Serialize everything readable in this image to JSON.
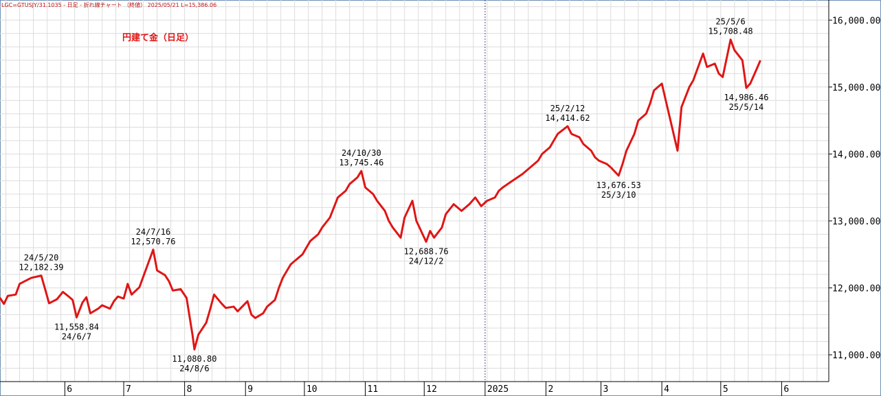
{
  "header": {
    "text": "LGC=GTUSJY/31.1035 - 日足 - 折れ線チャート （終値） 2025/05/21 L=15,386.06"
  },
  "colors": {
    "line": "#e01515",
    "title": "#e01515",
    "grid": "#dcdcdc",
    "axis": "#000000",
    "text": "#000000",
    "border": "#6b8fb3"
  },
  "chart_data": {
    "type": "line",
    "title": "円建て金（日足）",
    "xlabel": "",
    "ylabel": "",
    "ylim": [
      10600,
      16300
    ],
    "x_range": [
      "2024-04-29",
      "2025-06-25"
    ],
    "grid": true,
    "y_ticks": [
      {
        "value": 11000,
        "label": "11,000.00"
      },
      {
        "value": 12000,
        "label": "12,000.00"
      },
      {
        "value": 13000,
        "label": "13,000.00"
      },
      {
        "value": 14000,
        "label": "14,000.00"
      },
      {
        "value": 15000,
        "label": "15,000.00"
      },
      {
        "value": 16000,
        "label": "16,000.00"
      }
    ],
    "x_ticks": [
      {
        "date": "2024-06-01",
        "label": "6"
      },
      {
        "date": "2024-07-01",
        "label": "7"
      },
      {
        "date": "2024-08-01",
        "label": "8"
      },
      {
        "date": "2024-09-01",
        "label": "9"
      },
      {
        "date": "2024-10-01",
        "label": "10"
      },
      {
        "date": "2024-11-01",
        "label": "11"
      },
      {
        "date": "2024-12-01",
        "label": "12"
      },
      {
        "date": "2025-01-01",
        "label": "2025"
      },
      {
        "date": "2025-02-01",
        "label": "2"
      },
      {
        "date": "2025-03-01",
        "label": "3"
      },
      {
        "date": "2025-04-01",
        "label": "4"
      },
      {
        "date": "2025-05-01",
        "label": "5"
      },
      {
        "date": "2025-06-01",
        "label": "6"
      }
    ],
    "year_divider": "2025-01-01",
    "series": [
      {
        "points": [
          [
            "2024-04-29",
            11850
          ],
          [
            "2024-05-01",
            11760
          ],
          [
            "2024-05-03",
            11880
          ],
          [
            "2024-05-07",
            11900
          ],
          [
            "2024-05-09",
            12060
          ],
          [
            "2024-05-13",
            12120
          ],
          [
            "2024-05-15",
            12150
          ],
          [
            "2024-05-20",
            12182.39
          ],
          [
            "2024-05-22",
            11980
          ],
          [
            "2024-05-24",
            11770
          ],
          [
            "2024-05-28",
            11830
          ],
          [
            "2024-05-31",
            11940
          ],
          [
            "2024-06-03",
            11870
          ],
          [
            "2024-06-05",
            11820
          ],
          [
            "2024-06-07",
            11558.84
          ],
          [
            "2024-06-10",
            11780
          ],
          [
            "2024-06-12",
            11860
          ],
          [
            "2024-06-14",
            11620
          ],
          [
            "2024-06-18",
            11690
          ],
          [
            "2024-06-20",
            11740
          ],
          [
            "2024-06-24",
            11690
          ],
          [
            "2024-06-26",
            11800
          ],
          [
            "2024-06-28",
            11870
          ],
          [
            "2024-07-01",
            11840
          ],
          [
            "2024-07-03",
            12060
          ],
          [
            "2024-07-05",
            11900
          ],
          [
            "2024-07-09",
            12010
          ],
          [
            "2024-07-11",
            12170
          ],
          [
            "2024-07-16",
            12570.76
          ],
          [
            "2024-07-18",
            12260
          ],
          [
            "2024-07-22",
            12190
          ],
          [
            "2024-07-24",
            12100
          ],
          [
            "2024-07-26",
            11960
          ],
          [
            "2024-07-30",
            11980
          ],
          [
            "2024-08-02",
            11850
          ],
          [
            "2024-08-05",
            11300
          ],
          [
            "2024-08-06",
            11080.8
          ],
          [
            "2024-08-08",
            11300
          ],
          [
            "2024-08-12",
            11480
          ],
          [
            "2024-08-14",
            11680
          ],
          [
            "2024-08-16",
            11900
          ],
          [
            "2024-08-20",
            11760
          ],
          [
            "2024-08-22",
            11700
          ],
          [
            "2024-08-26",
            11720
          ],
          [
            "2024-08-28",
            11650
          ],
          [
            "2024-09-02",
            11800
          ],
          [
            "2024-09-04",
            11600
          ],
          [
            "2024-09-06",
            11550
          ],
          [
            "2024-09-10",
            11620
          ],
          [
            "2024-09-12",
            11720
          ],
          [
            "2024-09-16",
            11820
          ],
          [
            "2024-09-18",
            12000
          ],
          [
            "2024-09-20",
            12150
          ],
          [
            "2024-09-24",
            12350
          ],
          [
            "2024-09-26",
            12400
          ],
          [
            "2024-09-30",
            12500
          ],
          [
            "2024-10-02",
            12600
          ],
          [
            "2024-10-04",
            12700
          ],
          [
            "2024-10-08",
            12800
          ],
          [
            "2024-10-10",
            12900
          ],
          [
            "2024-10-14",
            13050
          ],
          [
            "2024-10-16",
            13200
          ],
          [
            "2024-10-18",
            13350
          ],
          [
            "2024-10-22",
            13450
          ],
          [
            "2024-10-24",
            13550
          ],
          [
            "2024-10-28",
            13650
          ],
          [
            "2024-10-30",
            13745.46
          ],
          [
            "2024-11-01",
            13500
          ],
          [
            "2024-11-05",
            13400
          ],
          [
            "2024-11-07",
            13300
          ],
          [
            "2024-11-11",
            13150
          ],
          [
            "2024-11-13",
            13000
          ],
          [
            "2024-11-15",
            12900
          ],
          [
            "2024-11-19",
            12750
          ],
          [
            "2024-11-21",
            13050
          ],
          [
            "2024-11-25",
            13300
          ],
          [
            "2024-11-27",
            13000
          ],
          [
            "2024-12-02",
            12688.76
          ],
          [
            "2024-12-04",
            12850
          ],
          [
            "2024-12-06",
            12750
          ],
          [
            "2024-12-10",
            12900
          ],
          [
            "2024-12-12",
            13100
          ],
          [
            "2024-12-16",
            13250
          ],
          [
            "2024-12-18",
            13200
          ],
          [
            "2024-12-20",
            13150
          ],
          [
            "2024-12-24",
            13250
          ],
          [
            "2024-12-27",
            13350
          ],
          [
            "2024-12-30",
            13220
          ],
          [
            "2025-01-02",
            13300
          ],
          [
            "2025-01-06",
            13350
          ],
          [
            "2025-01-08",
            13450
          ],
          [
            "2025-01-10",
            13500
          ],
          [
            "2025-01-14",
            13580
          ],
          [
            "2025-01-16",
            13620
          ],
          [
            "2025-01-20",
            13700
          ],
          [
            "2025-01-22",
            13750
          ],
          [
            "2025-01-24",
            13800
          ],
          [
            "2025-01-28",
            13900
          ],
          [
            "2025-01-30",
            14000
          ],
          [
            "2025-02-03",
            14100
          ],
          [
            "2025-02-05",
            14200
          ],
          [
            "2025-02-07",
            14300
          ],
          [
            "2025-02-12",
            14414.62
          ],
          [
            "2025-02-14",
            14300
          ],
          [
            "2025-02-18",
            14250
          ],
          [
            "2025-02-20",
            14150
          ],
          [
            "2025-02-24",
            14050
          ],
          [
            "2025-02-26",
            13950
          ],
          [
            "2025-02-28",
            13900
          ],
          [
            "2025-03-04",
            13850
          ],
          [
            "2025-03-06",
            13800
          ],
          [
            "2025-03-10",
            13676.53
          ],
          [
            "2025-03-12",
            13850
          ],
          [
            "2025-03-14",
            14050
          ],
          [
            "2025-03-18",
            14300
          ],
          [
            "2025-03-20",
            14500
          ],
          [
            "2025-03-24",
            14600
          ],
          [
            "2025-03-26",
            14750
          ],
          [
            "2025-03-28",
            14950
          ],
          [
            "2025-04-01",
            15050
          ],
          [
            "2025-04-03",
            14800
          ],
          [
            "2025-04-07",
            14300
          ],
          [
            "2025-04-09",
            14050
          ],
          [
            "2025-04-11",
            14700
          ],
          [
            "2025-04-15",
            15000
          ],
          [
            "2025-04-17",
            15100
          ],
          [
            "2025-04-22",
            15500
          ],
          [
            "2025-04-24",
            15300
          ],
          [
            "2025-04-28",
            15350
          ],
          [
            "2025-04-30",
            15200
          ],
          [
            "2025-05-02",
            15150
          ],
          [
            "2025-05-06",
            15708.48
          ],
          [
            "2025-05-08",
            15550
          ],
          [
            "2025-05-12",
            15400
          ],
          [
            "2025-05-14",
            14986.46
          ],
          [
            "2025-05-16",
            15050
          ],
          [
            "2025-05-19",
            15250
          ],
          [
            "2025-05-21",
            15386.06
          ]
        ]
      }
    ],
    "annotations": [
      {
        "date": "2024-05-20",
        "value": 12182.39,
        "line1": "24/5/20",
        "line2": "12,182.39",
        "pos": "above"
      },
      {
        "date": "2024-06-07",
        "value": 11558.84,
        "line1": "11,558.84",
        "line2": "24/6/7",
        "pos": "below"
      },
      {
        "date": "2024-07-16",
        "value": 12570.76,
        "line1": "24/7/16",
        "line2": "12,570.76",
        "pos": "above"
      },
      {
        "date": "2024-08-06",
        "value": 11080.8,
        "line1": "11,080.80",
        "line2": "24/8/6",
        "pos": "below"
      },
      {
        "date": "2024-10-30",
        "value": 13745.46,
        "line1": "24/10/30",
        "line2": "13,745.46",
        "pos": "above"
      },
      {
        "date": "2024-12-02",
        "value": 12688.76,
        "line1": "12,688.76",
        "line2": "24/12/2",
        "pos": "below"
      },
      {
        "date": "2025-02-12",
        "value": 14414.62,
        "line1": "25/2/12",
        "line2": "14,414.62",
        "pos": "above"
      },
      {
        "date": "2025-03-10",
        "value": 13676.53,
        "line1": "13,676.53",
        "line2": "25/3/10",
        "pos": "below"
      },
      {
        "date": "2025-05-06",
        "value": 15708.48,
        "line1": "25/5/6",
        "line2": "15,708.48",
        "pos": "above"
      },
      {
        "date": "2025-05-14",
        "value": 14986.46,
        "line1": "14,986.46",
        "line2": "25/5/14",
        "pos": "below"
      }
    ]
  }
}
